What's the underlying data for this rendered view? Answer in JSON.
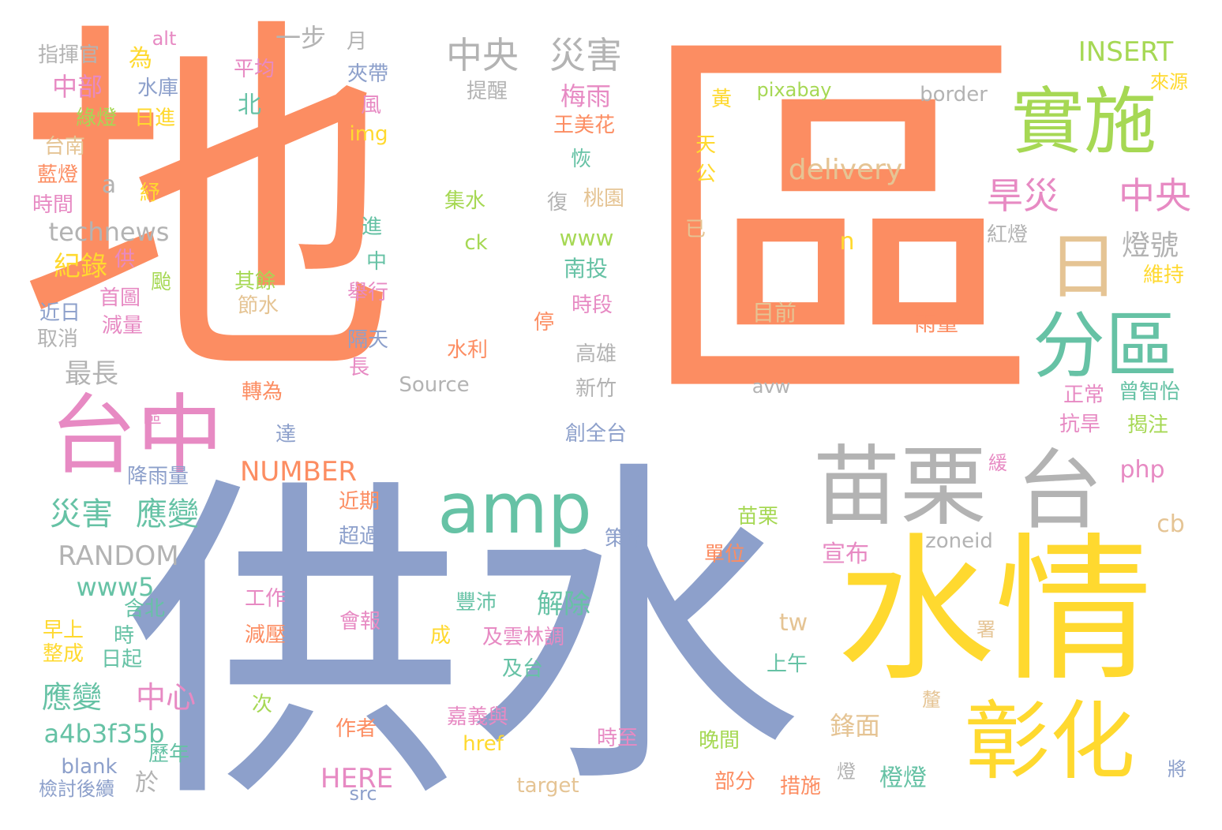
{
  "palette": {
    "orange": "#fc8d62",
    "blue": "#8da0cb",
    "yellow": "#ffd92f",
    "green": "#a6d854",
    "teal": "#66c2a5",
    "pink": "#e78ac3",
    "tan": "#e5c494",
    "gray": "#b3b3b3"
  },
  "words": [
    {
      "text": "地",
      "color": "orange"
    },
    {
      "text": "區",
      "color": "orange"
    },
    {
      "text": "供",
      "color": "blue"
    },
    {
      "text": "水",
      "color": "blue"
    },
    {
      "text": "水情",
      "color": "yellow"
    },
    {
      "text": "苗栗",
      "color": "gray"
    },
    {
      "text": "台",
      "color": "gray"
    },
    {
      "text": "實施",
      "color": "green"
    },
    {
      "text": "分區",
      "color": "teal"
    },
    {
      "text": "彰化",
      "color": "yellow"
    },
    {
      "text": "台中",
      "color": "pink"
    },
    {
      "text": "amp",
      "color": "teal"
    },
    {
      "text": "日",
      "color": "tan"
    },
    {
      "text": "中央",
      "color": "gray"
    },
    {
      "text": "災害",
      "color": "gray"
    },
    {
      "text": "旱災",
      "color": "pink"
    },
    {
      "text": "中央",
      "color": "pink"
    },
    {
      "text": "delivery",
      "color": "tan"
    },
    {
      "text": "INSERT",
      "color": "green"
    },
    {
      "text": "燈號",
      "color": "gray"
    },
    {
      "text": "災害",
      "color": "teal"
    },
    {
      "text": "應變",
      "color": "teal"
    },
    {
      "text": "RANDOM",
      "color": "gray"
    },
    {
      "text": "NUMBER",
      "color": "orange"
    },
    {
      "text": "www5",
      "color": "teal"
    },
    {
      "text": "應變",
      "color": "teal"
    },
    {
      "text": "中心",
      "color": "pink"
    },
    {
      "text": "a4b3f35b",
      "color": "teal"
    },
    {
      "text": "HERE",
      "color": "pink"
    },
    {
      "text": "technews",
      "color": "gray"
    },
    {
      "text": "紀錄",
      "color": "yellow"
    },
    {
      "text": "最長",
      "color": "gray"
    },
    {
      "text": "中部",
      "color": "pink"
    },
    {
      "text": "一步",
      "color": "gray"
    },
    {
      "text": "梅雨",
      "color": "pink"
    },
    {
      "text": "北",
      "color": "teal"
    },
    {
      "text": "www",
      "color": "green"
    },
    {
      "text": "南投",
      "color": "teal"
    },
    {
      "text": "解除",
      "color": "teal"
    },
    {
      "text": "宣布",
      "color": "pink"
    },
    {
      "text": "鋒面",
      "color": "tan"
    },
    {
      "text": "橙燈",
      "color": "teal"
    },
    {
      "text": "php",
      "color": "pink"
    },
    {
      "text": "cb",
      "color": "tan"
    },
    {
      "text": "tw",
      "color": "tan"
    },
    {
      "text": "n",
      "color": "yellow"
    },
    {
      "text": "目前",
      "color": "tan"
    },
    {
      "text": "雨量",
      "color": "orange"
    },
    {
      "text": "Source",
      "color": "gray"
    },
    {
      "text": "avw",
      "color": "gray"
    },
    {
      "text": "zoneid",
      "color": "gray"
    },
    {
      "text": "target",
      "color": "tan"
    },
    {
      "text": "href",
      "color": "yellow"
    },
    {
      "text": "src",
      "color": "blue"
    },
    {
      "text": "blank",
      "color": "blue"
    },
    {
      "text": "border",
      "color": "gray"
    },
    {
      "text": "pixabay",
      "color": "green"
    },
    {
      "text": "ck",
      "color": "green"
    },
    {
      "text": "img",
      "color": "yellow"
    },
    {
      "text": "alt",
      "color": "pink"
    },
    {
      "text": "a",
      "color": "gray"
    },
    {
      "text": "指揮官",
      "color": "gray"
    },
    {
      "text": "月",
      "color": "gray"
    },
    {
      "text": "為",
      "color": "yellow"
    },
    {
      "text": "水庫",
      "color": "blue"
    },
    {
      "text": "綠燈",
      "color": "green"
    },
    {
      "text": "日進",
      "color": "yellow"
    },
    {
      "text": "台南",
      "color": "tan"
    },
    {
      "text": "藍燈",
      "color": "orange"
    },
    {
      "text": "紓",
      "color": "yellow"
    },
    {
      "text": "時間",
      "color": "pink"
    },
    {
      "text": "平均",
      "color": "pink"
    },
    {
      "text": "夾帶",
      "color": "blue"
    },
    {
      "text": "提醒",
      "color": "gray"
    },
    {
      "text": "風",
      "color": "pink"
    },
    {
      "text": "王美花",
      "color": "orange"
    },
    {
      "text": "恢",
      "color": "teal"
    },
    {
      "text": "復",
      "color": "gray"
    },
    {
      "text": "桃園",
      "color": "tan"
    },
    {
      "text": "黃",
      "color": "yellow"
    },
    {
      "text": "天",
      "color": "yellow"
    },
    {
      "text": "公",
      "color": "yellow"
    },
    {
      "text": "已",
      "color": "tan"
    },
    {
      "text": "紅燈",
      "color": "gray"
    },
    {
      "text": "來源",
      "color": "yellow"
    },
    {
      "text": "維持",
      "color": "yellow"
    },
    {
      "text": "集水",
      "color": "green"
    },
    {
      "text": "進",
      "color": "teal"
    },
    {
      "text": "中",
      "color": "teal"
    },
    {
      "text": "舉行",
      "color": "pink"
    },
    {
      "text": "隔天",
      "color": "blue"
    },
    {
      "text": "長",
      "color": "pink"
    },
    {
      "text": "水利",
      "color": "orange"
    },
    {
      "text": "高雄",
      "color": "gray"
    },
    {
      "text": "新竹",
      "color": "gray"
    },
    {
      "text": "停",
      "color": "orange"
    },
    {
      "text": "時段",
      "color": "pink"
    },
    {
      "text": "其餘",
      "color": "green"
    },
    {
      "text": "節水",
      "color": "tan"
    },
    {
      "text": "颱",
      "color": "green"
    },
    {
      "text": "供",
      "color": "pink"
    },
    {
      "text": "首圖",
      "color": "pink"
    },
    {
      "text": "減量",
      "color": "pink"
    },
    {
      "text": "近日",
      "color": "blue"
    },
    {
      "text": "取消",
      "color": "gray"
    },
    {
      "text": "轉為",
      "color": "orange"
    },
    {
      "text": "區",
      "color": "pink"
    },
    {
      "text": "達",
      "color": "blue"
    },
    {
      "text": "創全台",
      "color": "blue"
    },
    {
      "text": "正常",
      "color": "pink"
    },
    {
      "text": "曾智怡",
      "color": "teal"
    },
    {
      "text": "抗旱",
      "color": "pink"
    },
    {
      "text": "揭注",
      "color": "green"
    },
    {
      "text": "緩",
      "color": "pink"
    },
    {
      "text": "降雨量",
      "color": "blue"
    },
    {
      "text": "近期",
      "color": "orange"
    },
    {
      "text": "超過",
      "color": "blue"
    },
    {
      "text": "苗栗",
      "color": "green"
    },
    {
      "text": "策略",
      "color": "blue"
    },
    {
      "text": "單位",
      "color": "orange"
    },
    {
      "text": "工作",
      "color": "pink"
    },
    {
      "text": "含北",
      "color": "teal"
    },
    {
      "text": "減壓",
      "color": "orange"
    },
    {
      "text": "會報",
      "color": "pink"
    },
    {
      "text": "豐沛",
      "color": "teal"
    },
    {
      "text": "及雲林調",
      "color": "pink"
    },
    {
      "text": "成",
      "color": "yellow"
    },
    {
      "text": "及台",
      "color": "teal"
    },
    {
      "text": "上午",
      "color": "teal"
    },
    {
      "text": "署",
      "color": "tan"
    },
    {
      "text": "早上",
      "color": "yellow"
    },
    {
      "text": "時",
      "color": "teal"
    },
    {
      "text": "整成",
      "color": "yellow"
    },
    {
      "text": "日起",
      "color": "teal"
    },
    {
      "text": "次",
      "color": "green"
    },
    {
      "text": "作者",
      "color": "orange"
    },
    {
      "text": "嘉義與",
      "color": "pink"
    },
    {
      "text": "釐",
      "color": "tan"
    },
    {
      "text": "時至",
      "color": "pink"
    },
    {
      "text": "晚間",
      "color": "green"
    },
    {
      "text": "歷年",
      "color": "teal"
    },
    {
      "text": "檢討後續",
      "color": "blue"
    },
    {
      "text": "於",
      "color": "gray"
    },
    {
      "text": "部分",
      "color": "orange"
    },
    {
      "text": "措施",
      "color": "orange"
    },
    {
      "text": "燈",
      "color": "gray"
    },
    {
      "text": "將",
      "color": "blue"
    }
  ]
}
